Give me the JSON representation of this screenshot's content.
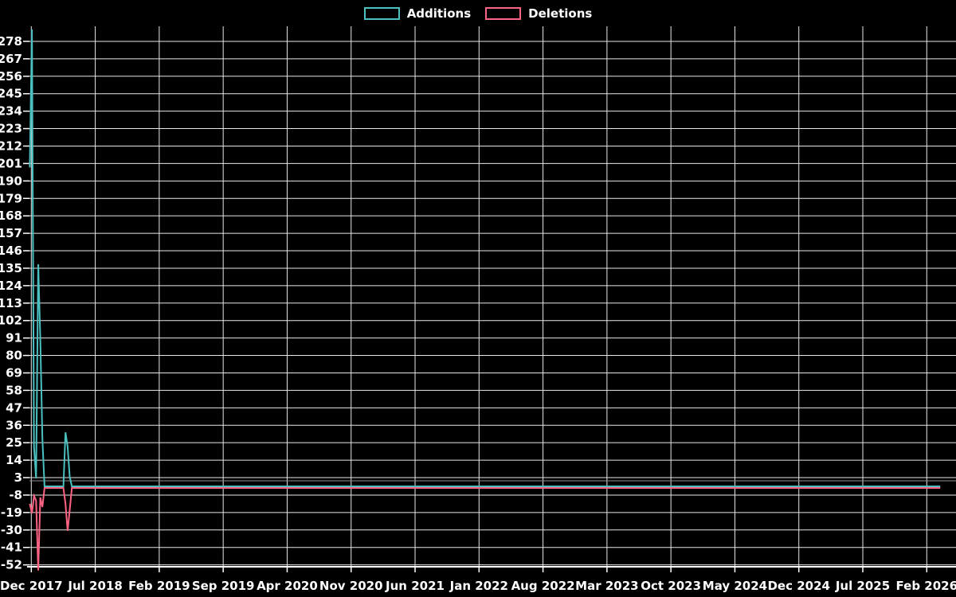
{
  "chart_data": {
    "type": "line",
    "title": "",
    "legend_position": "top-center",
    "background": "#000000",
    "grid": true,
    "colors": {
      "additions": "#4bc0c0",
      "deletions": "#ff6384",
      "grid": "#e8e8e8",
      "axis": "#ffffff",
      "zero_axis": "#909090",
      "text": "#ffffff"
    },
    "x_axis": {
      "start": "2017-12-01",
      "end": "2026-02-01",
      "ticks": [
        "Dec 2017",
        "Jul 2018",
        "Feb 2019",
        "Sep 2019",
        "Apr 2020",
        "Nov 2020",
        "Jun 2021",
        "Jan 2022",
        "Aug 2022",
        "Mar 2023",
        "Oct 2023",
        "May 2024",
        "Dec 2024",
        "Jul 2025",
        "Feb 2026"
      ]
    },
    "y_axis": {
      "ticks": [
        -52,
        -41,
        -30,
        -19,
        -8,
        3,
        14,
        25,
        36,
        47,
        58,
        69,
        80,
        91,
        102,
        113,
        124,
        135,
        146,
        157,
        168,
        179,
        190,
        201,
        212,
        223,
        234,
        245,
        256,
        267,
        278
      ],
      "min": -52,
      "max": 289
    },
    "series": [
      {
        "name": "Additions",
        "color": "#4bc0c0",
        "points": [
          [
            "2017-11-26",
            201
          ],
          [
            "2017-12-03",
            288
          ],
          [
            "2017-12-10",
            25
          ],
          [
            "2017-12-17",
            5
          ],
          [
            "2017-12-24",
            140
          ],
          [
            "2017-12-31",
            93
          ],
          [
            "2018-01-07",
            30
          ],
          [
            "2018-01-14",
            0
          ],
          [
            "2018-03-18",
            0
          ],
          [
            "2018-03-25",
            34
          ],
          [
            "2018-04-01",
            25
          ],
          [
            "2018-04-08",
            6
          ],
          [
            "2018-04-15",
            0
          ],
          [
            "2026-03-18",
            0
          ]
        ]
      },
      {
        "name": "Deletions",
        "color": "#ff6384",
        "points": [
          [
            "2017-11-26",
            -10
          ],
          [
            "2017-12-03",
            -16
          ],
          [
            "2017-12-10",
            -5
          ],
          [
            "2017-12-17",
            -8
          ],
          [
            "2017-12-24",
            -52
          ],
          [
            "2017-12-31",
            -6
          ],
          [
            "2018-01-07",
            -12
          ],
          [
            "2018-01-14",
            0
          ],
          [
            "2018-03-18",
            0
          ],
          [
            "2018-03-25",
            -10
          ],
          [
            "2018-04-01",
            -27
          ],
          [
            "2018-04-08",
            -14
          ],
          [
            "2018-04-15",
            0
          ],
          [
            "2026-03-18",
            0
          ]
        ]
      }
    ]
  }
}
